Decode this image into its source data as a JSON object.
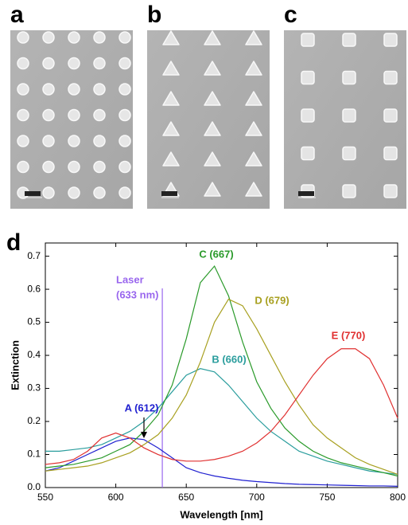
{
  "panels": [
    "a",
    "b",
    "c"
  ],
  "chart_data": {
    "type": "line",
    "panel_label": "d",
    "x_label": "Wavelength [nm]",
    "y_label": "Extinction",
    "x": [
      550,
      560,
      570,
      580,
      590,
      600,
      610,
      620,
      630,
      640,
      650,
      660,
      670,
      680,
      690,
      700,
      710,
      720,
      730,
      740,
      750,
      760,
      770,
      780,
      790,
      800
    ],
    "series": [
      {
        "name": "A (612)",
        "color": "#2020d0",
        "values": [
          0.05,
          0.06,
          0.08,
          0.1,
          0.12,
          0.14,
          0.15,
          0.145,
          0.12,
          0.09,
          0.06,
          0.045,
          0.035,
          0.028,
          0.022,
          0.018,
          0.015,
          0.012,
          0.01,
          0.009,
          0.008,
          0.007,
          0.006,
          0.005,
          0.005,
          0.004
        ]
      },
      {
        "name": "B (660)",
        "color": "#2a9d9d",
        "values": [
          0.11,
          0.11,
          0.115,
          0.12,
          0.13,
          0.15,
          0.17,
          0.2,
          0.24,
          0.29,
          0.34,
          0.36,
          0.35,
          0.31,
          0.26,
          0.21,
          0.17,
          0.14,
          0.11,
          0.095,
          0.08,
          0.07,
          0.06,
          0.05,
          0.045,
          0.04
        ]
      },
      {
        "name": "C (667)",
        "color": "#2a9a2a",
        "values": [
          0.06,
          0.065,
          0.07,
          0.08,
          0.09,
          0.11,
          0.13,
          0.17,
          0.22,
          0.31,
          0.45,
          0.62,
          0.67,
          0.58,
          0.44,
          0.32,
          0.24,
          0.18,
          0.14,
          0.11,
          0.09,
          0.075,
          0.065,
          0.055,
          0.045,
          0.035
        ]
      },
      {
        "name": "D (679)",
        "color": "#a8a020",
        "values": [
          0.05,
          0.055,
          0.06,
          0.065,
          0.075,
          0.09,
          0.105,
          0.13,
          0.16,
          0.21,
          0.28,
          0.38,
          0.5,
          0.57,
          0.55,
          0.48,
          0.4,
          0.32,
          0.25,
          0.19,
          0.15,
          0.12,
          0.09,
          0.07,
          0.055,
          0.04
        ]
      },
      {
        "name": "E (770)",
        "color": "#e03030",
        "values": [
          0.07,
          0.075,
          0.085,
          0.11,
          0.15,
          0.165,
          0.15,
          0.12,
          0.1,
          0.085,
          0.08,
          0.08,
          0.085,
          0.095,
          0.11,
          0.135,
          0.17,
          0.22,
          0.28,
          0.34,
          0.39,
          0.42,
          0.42,
          0.39,
          0.31,
          0.21
        ]
      }
    ],
    "laser": {
      "x": 633,
      "color": "#9966ee",
      "label": "Laser",
      "sublabel": "(633 nm)"
    },
    "xlim": [
      550,
      800
    ],
    "xticks": [
      550,
      600,
      650,
      700,
      750,
      800
    ],
    "ylim": [
      0,
      0.74
    ],
    "yticks": [
      {
        "value": 0,
        "label": "0.0"
      },
      0.1,
      0.2,
      0.3,
      0.4,
      0.5,
      0.6,
      0.7
    ],
    "grid": false
  }
}
